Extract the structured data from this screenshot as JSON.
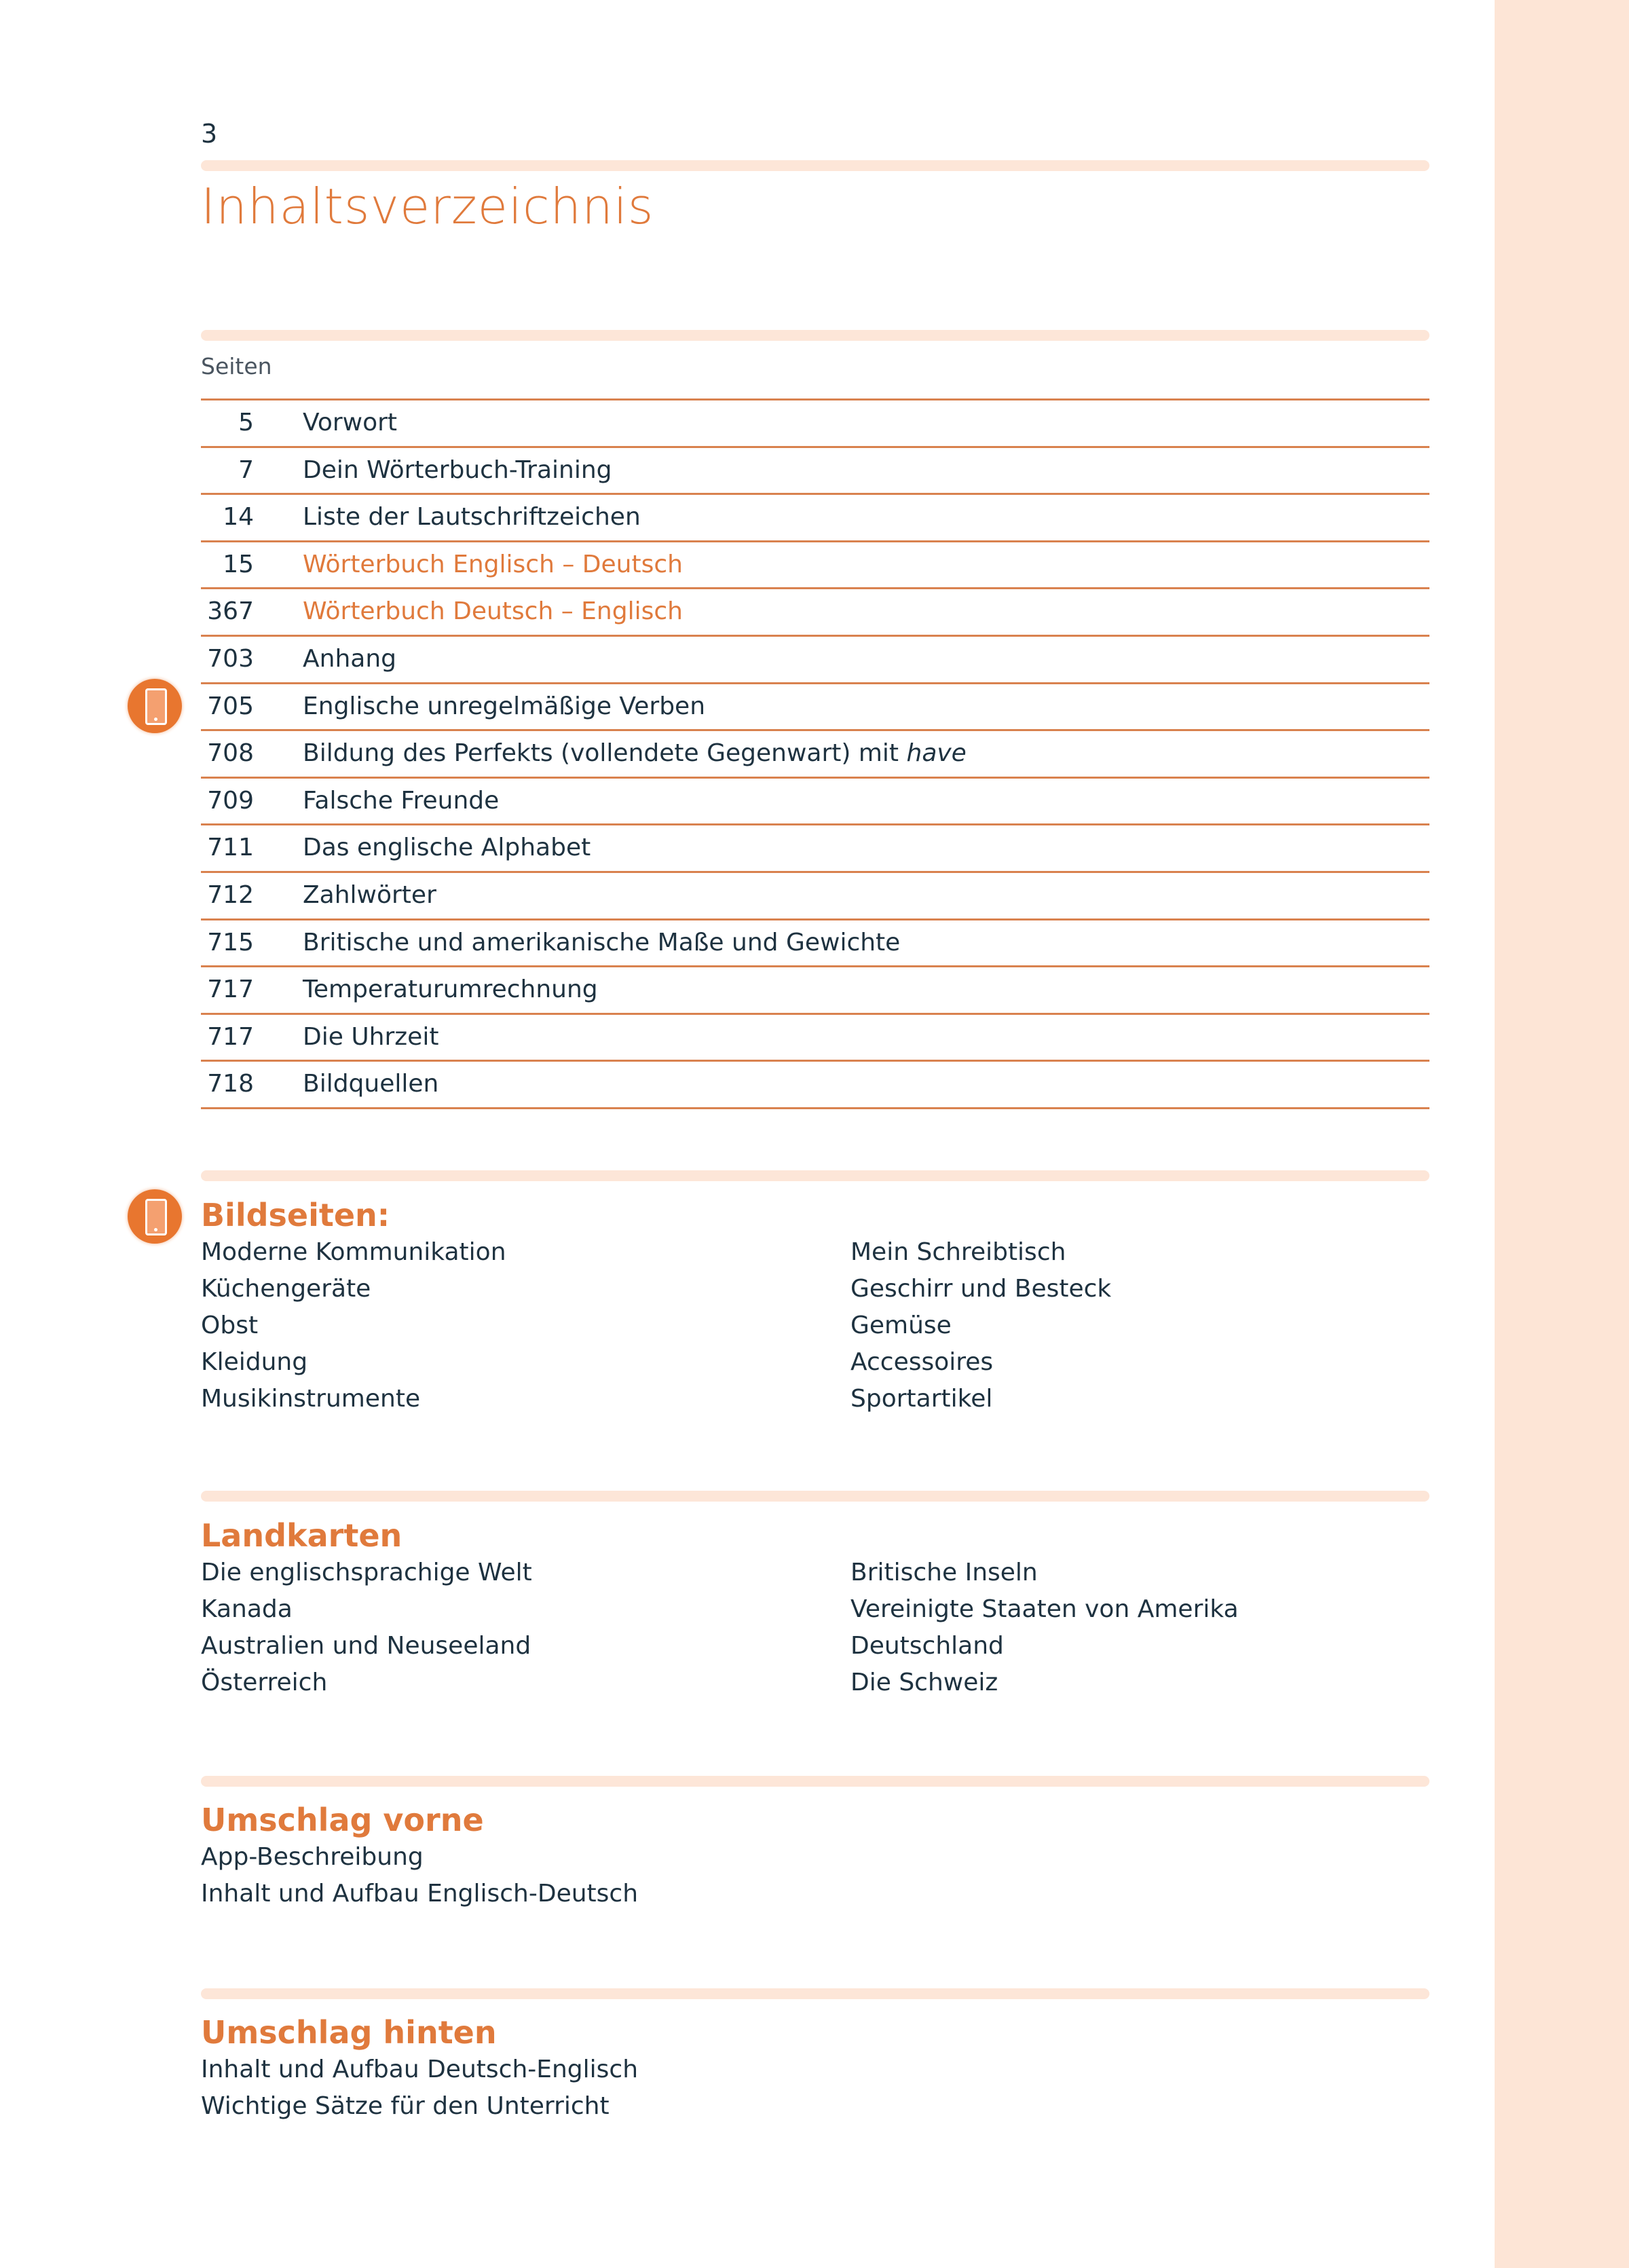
{
  "page_number": "3",
  "title": "Inhaltsverzeichnis",
  "pages_label": "Seiten",
  "colors": {
    "accent": "#e07a3c",
    "text": "#1e3240",
    "pale_bar": "#fde6d8",
    "side_band": "#fde5d6"
  },
  "toc": [
    {
      "page": "5",
      "label": "Vorwort"
    },
    {
      "page": "7",
      "label": "Dein Wörterbuch-Training"
    },
    {
      "page": "14",
      "label": "Liste der Lautschriftzeichen"
    },
    {
      "page": "15",
      "label": "Wörterbuch Englisch – Deutsch",
      "highlight": true
    },
    {
      "page": "367",
      "label": "Wörterbuch Deutsch – Englisch",
      "highlight": true
    },
    {
      "page": "703",
      "label": "Anhang"
    },
    {
      "page": "705",
      "label": "Englische unregelmäßige Verben",
      "icon": "smartphone-icon"
    },
    {
      "page": "708",
      "label": "Bildung des Perfekts (vollendete Gegenwart) mit ",
      "label_italic": "have"
    },
    {
      "page": "709",
      "label": "Falsche Freunde"
    },
    {
      "page": "711",
      "label": "Das englische Alphabet"
    },
    {
      "page": "712",
      "label": "Zahlwörter"
    },
    {
      "page": "715",
      "label": "Britische und amerikanische Maße und Gewichte"
    },
    {
      "page": "717",
      "label": "Temperaturumrechnung"
    },
    {
      "page": "717",
      "label": "Die Uhrzeit"
    },
    {
      "page": "718",
      "label": "Bildquellen"
    }
  ],
  "sections": [
    {
      "heading": "Bildseiten:",
      "icon": "smartphone-icon",
      "left": [
        "Moderne Kommunikation",
        "Küchengeräte",
        "Obst",
        "Kleidung",
        "Musikinstrumente"
      ],
      "right": [
        "Mein Schreibtisch",
        "Geschirr und Besteck",
        "Gemüse",
        "Accessoires",
        "Sportartikel"
      ]
    },
    {
      "heading": "Landkarten",
      "left": [
        "Die englischsprachige Welt",
        "Kanada",
        "Australien und Neuseeland",
        "Österreich"
      ],
      "right": [
        "Britische Inseln",
        "Vereinigte Staaten von Amerika",
        "Deutschland",
        "Die Schweiz"
      ]
    },
    {
      "heading": "Umschlag vorne",
      "left": [
        "App-Beschreibung",
        "Inhalt und Aufbau Englisch-Deutsch"
      ],
      "right": []
    },
    {
      "heading": "Umschlag hinten",
      "left": [
        "Inhalt und Aufbau Deutsch-Englisch",
        "Wichtige Sätze für den Unterricht"
      ],
      "right": []
    }
  ]
}
